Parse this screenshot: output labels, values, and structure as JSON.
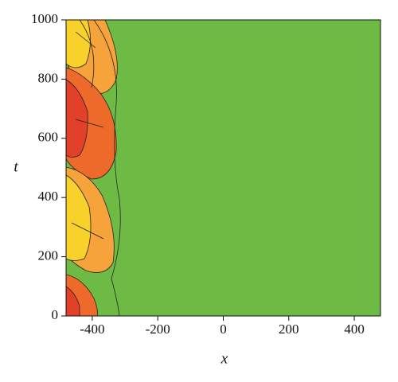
{
  "chart_data": {
    "type": "contour",
    "x_label": "x",
    "y_label": "t",
    "xlim": [
      -480,
      480
    ],
    "xticks": [
      -400,
      -200,
      0,
      200,
      400
    ],
    "ylim": [
      0,
      1000
    ],
    "yticks": [
      0,
      200,
      400,
      600,
      800,
      1000
    ],
    "color": "#6dbb45"
  }
}
